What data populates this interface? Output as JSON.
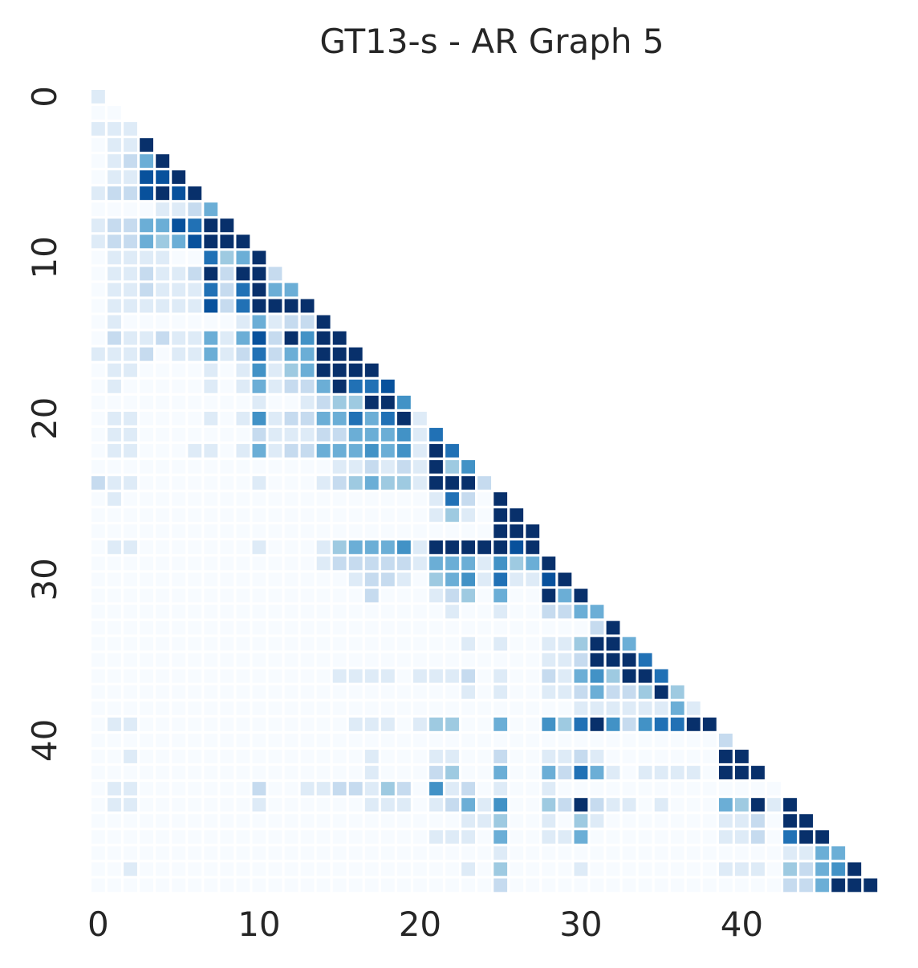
{
  "chart_data": {
    "type": "heatmap",
    "title": "GT13-s - AR Graph 5",
    "xlabel": "",
    "ylabel": "",
    "size": 49,
    "lower_triangular": true,
    "colormap": "Blues",
    "value_range": [
      0,
      1
    ],
    "grid": false,
    "x_ticks": [
      0,
      10,
      20,
      30,
      40
    ],
    "y_ticks": [
      0,
      10,
      20,
      30,
      40
    ],
    "x_tick_labels": [
      "0",
      "10",
      "20",
      "30",
      "40"
    ],
    "y_tick_labels": [
      "0",
      "10",
      "20",
      "30",
      "40"
    ],
    "colors": {
      "c0": "#f7fbff",
      "c1": "#deebf7",
      "c2": "#c6dbef",
      "c3": "#9ecae1",
      "c4": "#6baed6",
      "c5": "#4292c6",
      "c6": "#2171b5",
      "c7": "#08519c",
      "c8": "#08306b"
    },
    "rows": [
      [
        1
      ],
      [
        0,
        0
      ],
      [
        1,
        1,
        1
      ],
      [
        0,
        1,
        1,
        9
      ],
      [
        0,
        1,
        2,
        5,
        9
      ],
      [
        0,
        1,
        1,
        8,
        8,
        9
      ],
      [
        1,
        2,
        2,
        8,
        9,
        8,
        9
      ],
      [
        0,
        0,
        0,
        0,
        1,
        1,
        2,
        5
      ],
      [
        1,
        2,
        2,
        5,
        4,
        8,
        7,
        9,
        9
      ],
      [
        1,
        2,
        2,
        4,
        3,
        4,
        8,
        9,
        9,
        9
      ],
      [
        0,
        1,
        1,
        1,
        1,
        0,
        0,
        7,
        3,
        4,
        9
      ],
      [
        0,
        1,
        1,
        2,
        1,
        1,
        2,
        9,
        2,
        9,
        9,
        2
      ],
      [
        0,
        1,
        1,
        2,
        1,
        1,
        1,
        7,
        2,
        7,
        9,
        5,
        5
      ],
      [
        0,
        1,
        1,
        1,
        1,
        1,
        1,
        8,
        2,
        7,
        9,
        9,
        9,
        9
      ],
      [
        0,
        1,
        0,
        0,
        0,
        0,
        0,
        0,
        0,
        1,
        5,
        1,
        2,
        2,
        9
      ],
      [
        0,
        2,
        1,
        1,
        2,
        1,
        1,
        5,
        1,
        5,
        8,
        2,
        9,
        6,
        9,
        9
      ],
      [
        1,
        1,
        1,
        2,
        0,
        1,
        1,
        4,
        1,
        2,
        7,
        2,
        5,
        5,
        9,
        9,
        9
      ],
      [
        0,
        1,
        1,
        0,
        0,
        0,
        0,
        1,
        0,
        1,
        6,
        1,
        3,
        4,
        9,
        9,
        9,
        9
      ],
      [
        0,
        1,
        0,
        0,
        0,
        0,
        0,
        1,
        0,
        1,
        5,
        1,
        2,
        2,
        5,
        9,
        7,
        7,
        8
      ],
      [
        0,
        0,
        0,
        0,
        0,
        0,
        0,
        0,
        0,
        0,
        1,
        0,
        0,
        1,
        2,
        3,
        3,
        9,
        9,
        6
      ],
      [
        0,
        1,
        1,
        0,
        0,
        0,
        0,
        1,
        0,
        1,
        6,
        1,
        2,
        2,
        5,
        5,
        7,
        5,
        7,
        9,
        1
      ],
      [
        0,
        1,
        1,
        0,
        0,
        0,
        0,
        0,
        0,
        0,
        2,
        1,
        1,
        1,
        2,
        2,
        4,
        4,
        5,
        6,
        1,
        7
      ],
      [
        0,
        1,
        1,
        0,
        0,
        0,
        1,
        1,
        0,
        1,
        4,
        1,
        2,
        2,
        4,
        4,
        5,
        6,
        5,
        6,
        1,
        9,
        7
      ],
      [
        0,
        0,
        0,
        0,
        0,
        0,
        0,
        0,
        0,
        0,
        0,
        0,
        0,
        0,
        0,
        1,
        1,
        2,
        1,
        2,
        1,
        9,
        3,
        6
      ],
      [
        2,
        1,
        1,
        0,
        0,
        0,
        0,
        0,
        0,
        0,
        1,
        0,
        0,
        0,
        1,
        2,
        3,
        4,
        3,
        3,
        1,
        9,
        9,
        9,
        2
      ],
      [
        0,
        1,
        0,
        0,
        0,
        0,
        0,
        0,
        0,
        0,
        0,
        0,
        0,
        0,
        0,
        0,
        0,
        0,
        0,
        0,
        0,
        1,
        7,
        2,
        0,
        9
      ],
      [
        0,
        0,
        0,
        0,
        0,
        0,
        0,
        0,
        0,
        0,
        0,
        0,
        0,
        0,
        0,
        0,
        0,
        0,
        0,
        0,
        0,
        1,
        3,
        1,
        0,
        9,
        9
      ],
      [
        0,
        0,
        0,
        0,
        0,
        0,
        0,
        0,
        0,
        0,
        0,
        0,
        0,
        0,
        0,
        0,
        0,
        0,
        0,
        0,
        0,
        0,
        0,
        0,
        0,
        9,
        9,
        9
      ],
      [
        0,
        1,
        1,
        0,
        0,
        0,
        0,
        0,
        0,
        0,
        1,
        0,
        0,
        0,
        1,
        3,
        5,
        5,
        5,
        6,
        1,
        9,
        9,
        9,
        9,
        9,
        8,
        9
      ],
      [
        0,
        0,
        0,
        0,
        0,
        0,
        0,
        0,
        0,
        0,
        0,
        0,
        0,
        0,
        1,
        2,
        2,
        2,
        2,
        2,
        1,
        5,
        5,
        5,
        1,
        6,
        3,
        4,
        9
      ],
      [
        0,
        0,
        0,
        0,
        0,
        0,
        0,
        0,
        0,
        0,
        0,
        0,
        0,
        0,
        0,
        0,
        1,
        2,
        2,
        1,
        0,
        3,
        4,
        6,
        1,
        7,
        1,
        1,
        8,
        9
      ],
      [
        0,
        0,
        0,
        0,
        0,
        0,
        0,
        0,
        0,
        0,
        0,
        0,
        0,
        0,
        0,
        0,
        0,
        2,
        0,
        0,
        0,
        1,
        2,
        3,
        0,
        4,
        0,
        0,
        9,
        5,
        9
      ],
      [
        0,
        0,
        0,
        0,
        0,
        0,
        0,
        0,
        0,
        0,
        0,
        0,
        0,
        0,
        0,
        0,
        0,
        0,
        0,
        0,
        0,
        0,
        1,
        0,
        0,
        1,
        0,
        0,
        2,
        2,
        4,
        5
      ],
      [
        0,
        0,
        0,
        0,
        0,
        0,
        0,
        0,
        0,
        0,
        0,
        0,
        0,
        0,
        0,
        0,
        0,
        0,
        0,
        0,
        0,
        0,
        0,
        0,
        0,
        0,
        0,
        0,
        0,
        0,
        0,
        2,
        9
      ],
      [
        0,
        0,
        0,
        0,
        0,
        0,
        0,
        0,
        0,
        0,
        0,
        0,
        0,
        0,
        0,
        0,
        0,
        0,
        0,
        0,
        0,
        0,
        0,
        1,
        0,
        1,
        0,
        0,
        1,
        1,
        3,
        9,
        9,
        4
      ],
      [
        0,
        0,
        0,
        0,
        0,
        0,
        0,
        0,
        0,
        0,
        0,
        0,
        0,
        0,
        0,
        0,
        0,
        0,
        0,
        0,
        0,
        0,
        0,
        0,
        0,
        0,
        0,
        0,
        1,
        1,
        2,
        9,
        9,
        9,
        7
      ],
      [
        0,
        0,
        0,
        0,
        0,
        0,
        0,
        0,
        0,
        0,
        0,
        0,
        0,
        0,
        0,
        1,
        1,
        1,
        1,
        0,
        1,
        1,
        1,
        2,
        0,
        1,
        0,
        0,
        2,
        1,
        5,
        6,
        3,
        9,
        9,
        7
      ],
      [
        0,
        0,
        0,
        0,
        0,
        0,
        0,
        0,
        0,
        0,
        0,
        0,
        0,
        0,
        0,
        0,
        0,
        0,
        0,
        0,
        0,
        0,
        0,
        1,
        0,
        1,
        0,
        0,
        1,
        1,
        2,
        5,
        2,
        2,
        3,
        9,
        3
      ],
      [
        0,
        0,
        0,
        0,
        0,
        0,
        0,
        0,
        0,
        0,
        0,
        0,
        0,
        0,
        0,
        0,
        0,
        0,
        0,
        0,
        0,
        0,
        0,
        0,
        0,
        0,
        0,
        0,
        0,
        0,
        1,
        1,
        1,
        1,
        1,
        1,
        5,
        1
      ],
      [
        0,
        1,
        1,
        0,
        0,
        0,
        0,
        0,
        0,
        0,
        0,
        0,
        0,
        0,
        0,
        0,
        1,
        1,
        1,
        0,
        1,
        3,
        3,
        0,
        0,
        4,
        0,
        0,
        6,
        3,
        7,
        9,
        6,
        2,
        6,
        7,
        7,
        9,
        9
      ],
      [
        0,
        0,
        0,
        0,
        0,
        0,
        0,
        0,
        0,
        0,
        0,
        0,
        0,
        0,
        0,
        0,
        0,
        0,
        0,
        0,
        0,
        0,
        0,
        0,
        0,
        0,
        0,
        0,
        0,
        0,
        0,
        0,
        0,
        0,
        0,
        0,
        0,
        0,
        0,
        2
      ],
      [
        0,
        0,
        1,
        0,
        0,
        0,
        0,
        0,
        0,
        0,
        0,
        0,
        0,
        0,
        0,
        0,
        0,
        1,
        0,
        0,
        0,
        1,
        1,
        0,
        0,
        2,
        0,
        0,
        1,
        1,
        2,
        1,
        0,
        0,
        0,
        0,
        0,
        0,
        0,
        9,
        9
      ],
      [
        0,
        0,
        0,
        0,
        0,
        0,
        0,
        0,
        0,
        0,
        0,
        0,
        0,
        0,
        0,
        0,
        0,
        1,
        0,
        0,
        0,
        2,
        3,
        0,
        0,
        5,
        0,
        0,
        5,
        2,
        7,
        5,
        1,
        0,
        1,
        1,
        1,
        1,
        0,
        9,
        9,
        9
      ],
      [
        0,
        1,
        1,
        0,
        0,
        0,
        0,
        0,
        0,
        0,
        2,
        0,
        0,
        1,
        1,
        2,
        2,
        1,
        3,
        2,
        0,
        6,
        1,
        2,
        0,
        1,
        0,
        0,
        1,
        0,
        0,
        0,
        0,
        0,
        0,
        0,
        0,
        0,
        0,
        0,
        0,
        0,
        0
      ],
      [
        0,
        1,
        1,
        0,
        0,
        0,
        0,
        0,
        0,
        0,
        1,
        0,
        0,
        0,
        0,
        0,
        0,
        1,
        1,
        1,
        0,
        1,
        2,
        5,
        1,
        6,
        0,
        0,
        3,
        2,
        9,
        2,
        1,
        1,
        0,
        1,
        0,
        0,
        0,
        4,
        3,
        9,
        1,
        9
      ],
      [
        0,
        0,
        0,
        0,
        0,
        0,
        0,
        0,
        0,
        0,
        0,
        0,
        0,
        0,
        0,
        0,
        0,
        0,
        0,
        0,
        0,
        0,
        0,
        1,
        1,
        3,
        0,
        0,
        1,
        0,
        3,
        1,
        0,
        0,
        0,
        0,
        0,
        0,
        0,
        1,
        1,
        2,
        0,
        9,
        9
      ],
      [
        0,
        0,
        0,
        0,
        0,
        0,
        0,
        0,
        0,
        0,
        0,
        0,
        0,
        0,
        0,
        0,
        0,
        0,
        0,
        0,
        0,
        1,
        1,
        1,
        0,
        5,
        0,
        0,
        1,
        1,
        5,
        0,
        0,
        0,
        0,
        0,
        0,
        0,
        0,
        1,
        1,
        2,
        0,
        7,
        9,
        9
      ],
      [
        0,
        0,
        0,
        0,
        0,
        0,
        0,
        0,
        0,
        0,
        0,
        0,
        0,
        0,
        0,
        0,
        0,
        0,
        0,
        0,
        0,
        0,
        0,
        0,
        0,
        1,
        0,
        0,
        0,
        0,
        0,
        0,
        0,
        0,
        0,
        0,
        0,
        0,
        0,
        0,
        0,
        0,
        0,
        1,
        1,
        5,
        5
      ],
      [
        0,
        0,
        1,
        0,
        0,
        0,
        0,
        0,
        0,
        0,
        0,
        0,
        0,
        0,
        0,
        0,
        0,
        0,
        0,
        0,
        0,
        0,
        0,
        1,
        0,
        3,
        0,
        0,
        0,
        0,
        1,
        0,
        0,
        0,
        0,
        0,
        0,
        0,
        0,
        1,
        1,
        1,
        0,
        3,
        2,
        5,
        6,
        9
      ],
      [
        0,
        0,
        0,
        0,
        0,
        0,
        0,
        0,
        0,
        0,
        0,
        0,
        0,
        0,
        0,
        0,
        0,
        0,
        0,
        0,
        0,
        0,
        0,
        0,
        0,
        2,
        0,
        0,
        0,
        0,
        0,
        0,
        0,
        0,
        0,
        0,
        0,
        0,
        0,
        0,
        0,
        0,
        0,
        2,
        2,
        5,
        9,
        9,
        9
      ]
    ]
  }
}
